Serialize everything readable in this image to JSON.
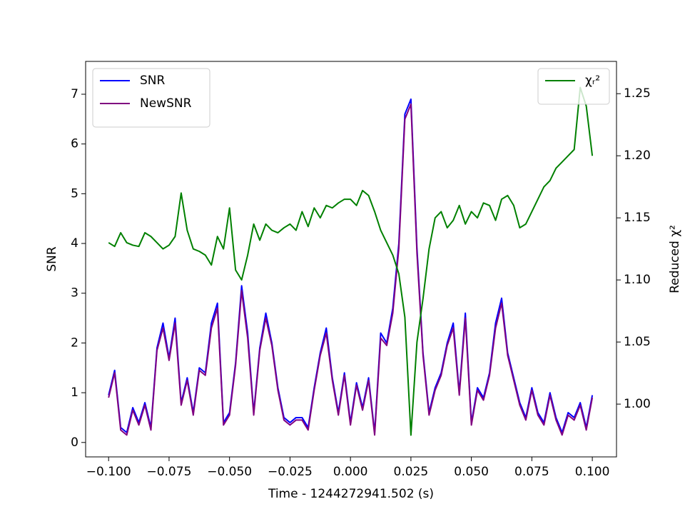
{
  "chart_data": {
    "type": "line",
    "xlabel": "Time - 1244272941.502 (s)",
    "ylabel": "SNR",
    "y2label": "Reduced χ²",
    "x": [
      -0.1,
      -0.0975,
      -0.095,
      -0.0925,
      -0.09,
      -0.0875,
      -0.085,
      -0.0825,
      -0.08,
      -0.0775,
      -0.075,
      -0.0725,
      -0.07,
      -0.0675,
      -0.065,
      -0.0625,
      -0.06,
      -0.0575,
      -0.055,
      -0.0525,
      -0.05,
      -0.0475,
      -0.045,
      -0.0425,
      -0.04,
      -0.0375,
      -0.035,
      -0.0325,
      -0.03,
      -0.0275,
      -0.025,
      -0.0225,
      -0.02,
      -0.0175,
      -0.015,
      -0.0125,
      -0.01,
      -0.0075,
      -0.005,
      -0.0025,
      0,
      0.0025,
      0.005,
      0.0075,
      0.01,
      0.0125,
      0.015,
      0.0175,
      0.02,
      0.0225,
      0.025,
      0.0275,
      0.03,
      0.0325,
      0.035,
      0.0375,
      0.04,
      0.0425,
      0.045,
      0.0475,
      0.05,
      0.0525,
      0.055,
      0.0575,
      0.06,
      0.0625,
      0.065,
      0.0675,
      0.07,
      0.0725,
      0.075,
      0.0775,
      0.08,
      0.0825,
      0.085,
      0.0875,
      0.09,
      0.0925,
      0.095,
      0.0975,
      0.1
    ],
    "series": [
      {
        "name": "SNR",
        "color": "#0000ff",
        "values": [
          0.95,
          1.45,
          0.3,
          0.2,
          0.7,
          0.4,
          0.8,
          0.3,
          1.9,
          2.4,
          1.7,
          2.5,
          0.8,
          1.3,
          0.6,
          1.5,
          1.4,
          2.4,
          2.8,
          0.4,
          0.6,
          1.6,
          3.15,
          2.2,
          0.6,
          1.9,
          2.6,
          2.0,
          1.1,
          0.5,
          0.4,
          0.5,
          0.5,
          0.3,
          1.1,
          1.8,
          2.3,
          1.3,
          0.6,
          1.4,
          0.4,
          1.2,
          0.7,
          1.3,
          0.2,
          2.2,
          2.0,
          2.7,
          4.0,
          6.6,
          6.9,
          3.9,
          1.8,
          0.6,
          1.1,
          1.4,
          2.0,
          2.4,
          1.0,
          2.6,
          0.4,
          1.1,
          0.9,
          1.4,
          2.4,
          2.9,
          1.8,
          1.3,
          0.8,
          0.5,
          1.1,
          0.6,
          0.4,
          1.0,
          0.5,
          0.2,
          0.6,
          0.5,
          0.8,
          0.3,
          0.95
        ]
      },
      {
        "name": "NewSNR",
        "color": "#800080",
        "values": [
          0.9,
          1.4,
          0.25,
          0.15,
          0.65,
          0.35,
          0.75,
          0.25,
          1.85,
          2.3,
          1.65,
          2.4,
          0.75,
          1.25,
          0.55,
          1.45,
          1.35,
          2.3,
          2.7,
          0.35,
          0.55,
          1.55,
          3.05,
          2.1,
          0.55,
          1.85,
          2.5,
          1.95,
          1.05,
          0.45,
          0.35,
          0.45,
          0.45,
          0.25,
          1.05,
          1.75,
          2.2,
          1.25,
          0.55,
          1.35,
          0.35,
          1.15,
          0.65,
          1.25,
          0.15,
          2.1,
          1.95,
          2.6,
          3.9,
          6.5,
          6.8,
          3.8,
          1.75,
          0.55,
          1.05,
          1.35,
          1.95,
          2.3,
          0.95,
          2.5,
          0.35,
          1.05,
          0.85,
          1.35,
          2.3,
          2.8,
          1.75,
          1.25,
          0.75,
          0.45,
          1.05,
          0.55,
          0.35,
          0.95,
          0.45,
          0.15,
          0.55,
          0.45,
          0.75,
          0.25,
          0.9
        ]
      },
      {
        "name": "χᵣ²",
        "color": "#008000",
        "axis": "y2",
        "values": [
          1.13,
          1.127,
          1.138,
          1.13,
          1.128,
          1.127,
          1.138,
          1.135,
          1.13,
          1.125,
          1.128,
          1.135,
          1.17,
          1.14,
          1.125,
          1.123,
          1.12,
          1.112,
          1.135,
          1.125,
          1.158,
          1.108,
          1.1,
          1.12,
          1.145,
          1.132,
          1.145,
          1.14,
          1.138,
          1.142,
          1.145,
          1.14,
          1.155,
          1.143,
          1.158,
          1.15,
          1.16,
          1.158,
          1.162,
          1.165,
          1.165,
          1.16,
          1.172,
          1.168,
          1.155,
          1.14,
          1.13,
          1.12,
          1.105,
          1.07,
          0.975,
          1.05,
          1.085,
          1.125,
          1.15,
          1.155,
          1.142,
          1.148,
          1.16,
          1.145,
          1.155,
          1.15,
          1.162,
          1.16,
          1.148,
          1.165,
          1.168,
          1.16,
          1.142,
          1.145,
          1.155,
          1.165,
          1.175,
          1.18,
          1.19,
          1.195,
          1.2,
          1.205,
          1.255,
          1.24,
          1.2
        ]
      }
    ],
    "xlim": [
      -0.1095,
      0.11
    ],
    "xticks": [
      {
        "value": -0.1,
        "label": "−0.100"
      },
      {
        "value": -0.075,
        "label": "−0.075"
      },
      {
        "value": -0.05,
        "label": "−0.050"
      },
      {
        "value": -0.025,
        "label": "−0.025"
      },
      {
        "value": 0,
        "label": "0.000"
      },
      {
        "value": 0.025,
        "label": "0.025"
      },
      {
        "value": 0.05,
        "label": "0.050"
      },
      {
        "value": 0.075,
        "label": "0.075"
      },
      {
        "value": 0.1,
        "label": "0.100"
      }
    ],
    "ylim": [
      -0.29,
      7.66
    ],
    "yticks": [
      0,
      1,
      2,
      3,
      4,
      5,
      6,
      7
    ],
    "y2lim": [
      0.9575,
      1.276
    ],
    "y2ticks": [
      {
        "value": 1.0,
        "label": "1.00"
      },
      1.05,
      {
        "value": 1.1,
        "label": "1.10"
      },
      1.15,
      {
        "value": 1.2,
        "label": "1.20"
      },
      1.25
    ],
    "grid": false,
    "legend": "upper left",
    "legend2": "upper right"
  }
}
